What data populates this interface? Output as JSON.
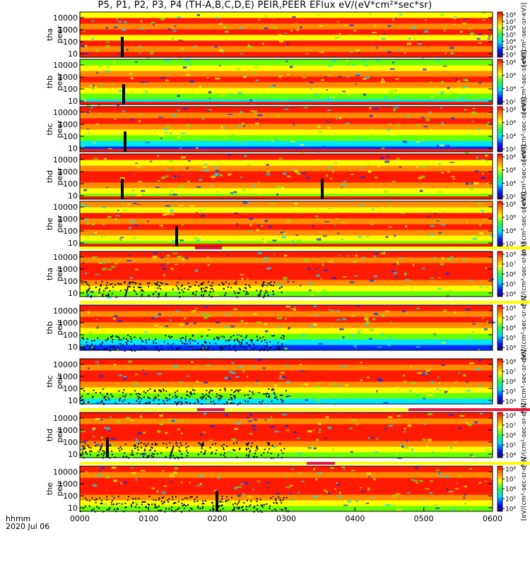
{
  "title": "P5, P1, P2, P3, P4 (TH-A,B,C,D,E) PEIR,PEER EFlux eV/(eV*cm²*sec*sr)",
  "footer": {
    "format": "hhmm",
    "date": "2020 Jul 06"
  },
  "chart_data": {
    "type": "heatmap",
    "x_ticks": [
      "0000",
      "0100",
      "0200",
      "0300",
      "0400",
      "0500",
      "0600"
    ],
    "x_range_hhmm": [
      "0000",
      "0600"
    ],
    "y_tick_labels": [
      "10",
      "100",
      "1000",
      "10000"
    ],
    "y_scale": "log",
    "colorbar_units": "[eV/(cm²-sec-sr-eV)]",
    "panels": [
      {
        "label_top": "tha",
        "label_bottom": "peer",
        "colorbar_ticks": [
          "10²",
          "10³",
          "10⁴",
          "10⁵",
          "10⁶",
          "10⁷",
          "10⁸"
        ]
      },
      {
        "label_top": "thb",
        "label_bottom": "peer",
        "colorbar_ticks": [
          "10²",
          "10⁴",
          "10⁶",
          "10⁸"
        ]
      },
      {
        "label_top": "thc",
        "label_bottom": "peer",
        "colorbar_ticks": [
          "10²",
          "10⁴",
          "10⁶",
          "10⁸"
        ]
      },
      {
        "label_top": "thd",
        "label_bottom": "peer",
        "colorbar_ticks": [
          "10²",
          "10⁴",
          "10⁶",
          "10⁸"
        ]
      },
      {
        "label_top": "the",
        "label_bottom": "peer",
        "colorbar_ticks": [
          "10²",
          "10⁴",
          "10⁶",
          "10⁸"
        ]
      },
      {
        "label_top": "tha",
        "label_bottom": "peir",
        "colorbar_ticks": [
          "10⁴",
          "10⁵",
          "10⁶",
          "10⁷",
          "10⁸"
        ]
      },
      {
        "label_top": "thb",
        "label_bottom": "peir",
        "colorbar_ticks": [
          "10⁴",
          "10⁵",
          "10⁶",
          "10⁷",
          "10⁸"
        ]
      },
      {
        "label_top": "thc",
        "label_bottom": "peir",
        "colorbar_ticks": [
          "10⁴",
          "10⁵",
          "10⁶",
          "10⁷",
          "10⁸"
        ]
      },
      {
        "label_top": "thd",
        "label_bottom": "peir",
        "colorbar_ticks": [
          "10⁴",
          "10⁵",
          "10⁶",
          "10⁷",
          "10⁸"
        ]
      },
      {
        "label_top": "the",
        "label_bottom": "peir",
        "colorbar_ticks": [
          "10⁴",
          "10⁵",
          "10⁶",
          "10⁷",
          "10⁸"
        ]
      }
    ]
  },
  "colors": {
    "red": "#ff1a00",
    "orange": "#ff8c00",
    "yellow": "#ffff00",
    "green": "#64ff00",
    "cyan": "#00e6ff",
    "blue": "#0030ff",
    "navy": "#000064",
    "black": "#000000",
    "flag": "#e8173c"
  }
}
